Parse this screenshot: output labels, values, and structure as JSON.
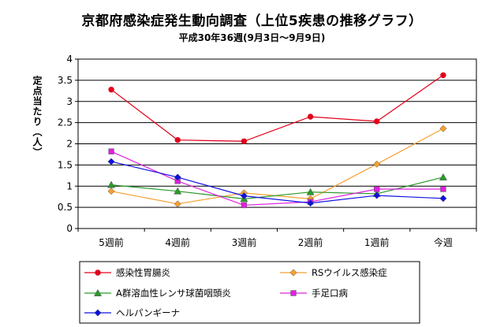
{
  "chart_data": {
    "type": "line",
    "title": "京都府感染症発生動向調査（上位5疾患の推移グラフ）",
    "subtitle": "平成30年36週(9月3日～9月9日)",
    "ylabel": "定点当たり（人）",
    "xlabel": "",
    "categories": [
      "5週前",
      "4週前",
      "3週前",
      "2週前",
      "1週前",
      "今週"
    ],
    "ylim": [
      0,
      4
    ],
    "yticks": [
      "0",
      "0.5",
      "1",
      "1.5",
      "2",
      "2.5",
      "3",
      "3.5",
      "4"
    ],
    "grid": true,
    "legend_position": "bottom",
    "series": [
      {
        "name": "感染性胃腸炎",
        "color": "#e3001b",
        "marker": "circle",
        "values": [
          3.28,
          2.09,
          2.06,
          2.64,
          2.53,
          3.62
        ]
      },
      {
        "name": "RSウイルス感染症",
        "color": "#f5a030",
        "marker": "diamond",
        "values": [
          0.88,
          0.58,
          0.84,
          0.7,
          1.52,
          2.36
        ]
      },
      {
        "name": "A群溶血性レンサ球菌咽頭炎",
        "color": "#2a9a2a",
        "marker": "triangle",
        "values": [
          1.03,
          0.88,
          0.7,
          0.86,
          0.82,
          1.21
        ]
      },
      {
        "name": "手足口病",
        "color": "#e020e0",
        "marker": "square",
        "values": [
          1.82,
          1.12,
          0.55,
          0.63,
          0.93,
          0.93
        ]
      },
      {
        "name": "ヘルパンギーナ",
        "color": "#1010e0",
        "marker": "diamond",
        "values": [
          1.58,
          1.21,
          0.77,
          0.6,
          0.78,
          0.71
        ]
      }
    ]
  }
}
